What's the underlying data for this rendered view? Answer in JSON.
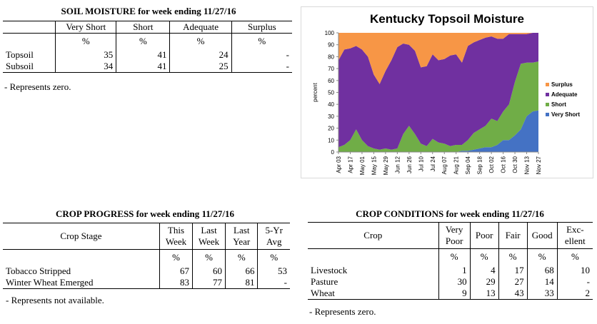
{
  "soil": {
    "title": "SOIL MOISTURE for week ending 11/27/16",
    "headers": [
      "Very Short",
      "Short",
      "Adequate",
      "Surplus"
    ],
    "units": [
      "%",
      "%",
      "%",
      "%"
    ],
    "rows": [
      {
        "label": "Topsoil",
        "values": [
          "35",
          "41",
          "24",
          "-"
        ]
      },
      {
        "label": "Subsoil",
        "values": [
          "34",
          "41",
          "25",
          "-"
        ]
      }
    ],
    "note": "- Represents zero."
  },
  "progress": {
    "title": "CROP PROGRESS for week ending 11/27/16",
    "stage_header": "Crop Stage",
    "headers": [
      [
        "This",
        "Week"
      ],
      [
        "Last",
        "Week"
      ],
      [
        "Last",
        "Year"
      ],
      [
        "5-Yr",
        "Avg"
      ]
    ],
    "units": [
      "%",
      "%",
      "%",
      "%"
    ],
    "rows": [
      {
        "label": "Tobacco Stripped",
        "values": [
          "67",
          "60",
          "66",
          "53"
        ]
      },
      {
        "label": "Winter Wheat Emerged",
        "values": [
          "83",
          "77",
          "81",
          "-"
        ]
      }
    ],
    "note": "- Represents not available."
  },
  "conditions": {
    "title": "CROP CONDITIONS for week ending 11/27/16",
    "crop_header": "Crop",
    "headers": [
      [
        "Very",
        "Poor"
      ],
      [
        "Poor"
      ],
      [
        "Fair"
      ],
      [
        "Good"
      ],
      [
        "Exc-",
        "ellent"
      ]
    ],
    "units": [
      "%",
      "%",
      "%",
      "%",
      "%"
    ],
    "rows": [
      {
        "label": "Livestock",
        "values": [
          "1",
          "4",
          "17",
          "68",
          "10"
        ]
      },
      {
        "label": "Pasture",
        "values": [
          "30",
          "29",
          "27",
          "14",
          "-"
        ]
      },
      {
        "label": "Wheat",
        "values": [
          "9",
          "13",
          "43",
          "33",
          "2"
        ]
      }
    ],
    "note": "- Represents zero."
  },
  "chart_data": {
    "type": "area",
    "title": "Kentucky Topsoil Moisture",
    "ylabel": "percent",
    "xlabel": "",
    "ylim": [
      0,
      100
    ],
    "yticks": [
      0,
      10,
      20,
      30,
      40,
      50,
      60,
      70,
      80,
      90,
      100
    ],
    "stacked": true,
    "grid": false,
    "legend_position": "right",
    "x": [
      "Apr 03",
      "Apr 10",
      "Apr 17",
      "Apr 24",
      "May 01",
      "May 08",
      "May 15",
      "May 22",
      "May 29",
      "Jun 05",
      "Jun 12",
      "Jun 19",
      "Jun 26",
      "Jul 03",
      "Jul 10",
      "Jul 17",
      "Jul 24",
      "Jul 31",
      "Aug 07",
      "Aug 14",
      "Aug 21",
      "Aug 28",
      "Sep 04",
      "Sep 11",
      "Sep 18",
      "Sep 25",
      "Oct 02",
      "Oct 09",
      "Oct 16",
      "Oct 23",
      "Oct 30",
      "Nov 06",
      "Nov 13",
      "Nov 20",
      "Nov 27"
    ],
    "x_tick_labels": [
      "Apr 03",
      "Apr 17",
      "May 01",
      "May 15",
      "May 29",
      "Jun 12",
      "Jun 26",
      "Jul 10",
      "Jul 24",
      "Aug 07",
      "Aug 21",
      "Sep 04",
      "Sep 18",
      "Oct 02",
      "Oct 16",
      "Oct 30",
      "Nov 13",
      "Nov 27"
    ],
    "series": [
      {
        "name": "Very Short",
        "color": "#4472c4",
        "values": [
          0,
          0,
          0,
          0,
          0,
          0,
          0,
          0,
          0,
          0,
          0,
          0,
          0,
          0,
          0,
          0,
          0,
          0,
          0,
          0,
          0,
          1,
          1,
          2,
          3,
          4,
          4,
          6,
          10,
          10,
          14,
          19,
          30,
          34,
          35
        ]
      },
      {
        "name": "Short",
        "color": "#70ad47",
        "values": [
          4,
          6,
          10,
          19,
          10,
          5,
          3,
          2,
          3,
          2,
          3,
          15,
          22,
          15,
          7,
          5,
          11,
          8,
          7,
          5,
          6,
          5,
          9,
          14,
          16,
          18,
          24,
          20,
          24,
          30,
          45,
          55,
          45,
          41,
          41
        ]
      },
      {
        "name": "Adequate",
        "color": "#7030a0",
        "values": [
          73,
          80,
          77,
          70,
          76,
          75,
          62,
          55,
          65,
          75,
          85,
          76,
          68,
          70,
          64,
          67,
          71,
          69,
          71,
          76,
          76,
          69,
          79,
          76,
          75,
          74,
          69,
          69,
          61,
          59,
          40,
          25,
          24,
          25,
          24
        ]
      },
      {
        "name": "Surplus",
        "color": "#f79646",
        "values": [
          23,
          14,
          13,
          11,
          14,
          20,
          35,
          43,
          32,
          23,
          12,
          9,
          10,
          15,
          29,
          28,
          18,
          23,
          22,
          19,
          18,
          25,
          11,
          8,
          6,
          4,
          3,
          5,
          5,
          1,
          1,
          1,
          1,
          0,
          0
        ]
      }
    ],
    "legend_order": [
      "Surplus",
      "Adequate",
      "Short",
      "Very Short"
    ]
  }
}
